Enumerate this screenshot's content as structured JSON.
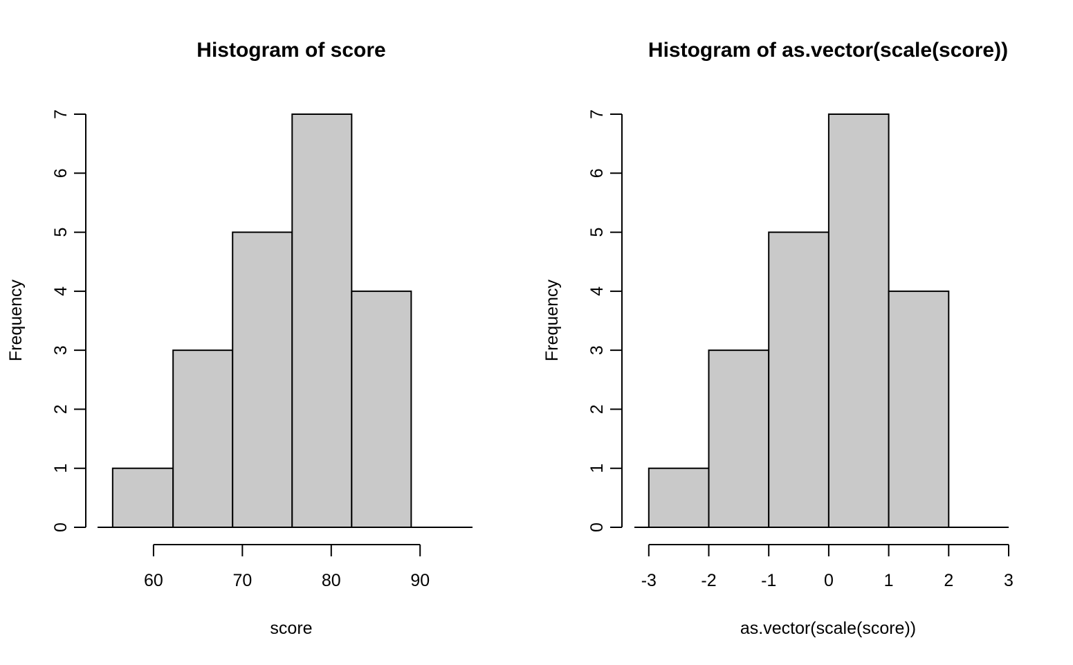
{
  "style": {
    "bar_fill": "#c9c9c9",
    "bar_stroke": "#000000",
    "background": "#ffffff"
  },
  "chart_data": [
    {
      "type": "bar",
      "title": "Histogram of score",
      "xlabel": "score",
      "ylabel": "Frequency",
      "bins": [
        {
          "x0": 55.4,
          "x1": 62.2,
          "count": 1
        },
        {
          "x0": 62.2,
          "x1": 68.9,
          "count": 3
        },
        {
          "x0": 68.9,
          "x1": 75.6,
          "count": 5
        },
        {
          "x0": 75.6,
          "x1": 82.3,
          "count": 7
        },
        {
          "x0": 82.3,
          "x1": 89.0,
          "count": 4
        }
      ],
      "xlim": [
        53.7,
        95.9
      ],
      "ylim": [
        0,
        7
      ],
      "xticks": [
        60,
        70,
        80,
        90
      ],
      "xtick_labels": [
        "60",
        "70",
        "80",
        "90"
      ],
      "yticks": [
        0,
        1,
        2,
        3,
        4,
        5,
        6,
        7
      ],
      "ytick_labels": [
        "0",
        "1",
        "2",
        "3",
        "4",
        "5",
        "6",
        "7"
      ],
      "grid": false
    },
    {
      "type": "bar",
      "title": "Histogram of as.vector(scale(score))",
      "xlabel": "as.vector(scale(score))",
      "ylabel": "Frequency",
      "bins": [
        {
          "x0": -3,
          "x1": -2,
          "count": 1
        },
        {
          "x0": -2,
          "x1": -1,
          "count": 3
        },
        {
          "x0": -1,
          "x1": 0,
          "count": 5
        },
        {
          "x0": 0,
          "x1": 1,
          "count": 7
        },
        {
          "x0": 1,
          "x1": 2,
          "count": 4
        }
      ],
      "xlim": [
        -3.24,
        3.0
      ],
      "ylim": [
        0,
        7
      ],
      "xticks": [
        -3,
        -2,
        -1,
        0,
        1,
        2,
        3
      ],
      "xtick_labels": [
        "-3",
        "-2",
        "-1",
        "0",
        "1",
        "2",
        "3"
      ],
      "yticks": [
        0,
        1,
        2,
        3,
        4,
        5,
        6,
        7
      ],
      "ytick_labels": [
        "0",
        "1",
        "2",
        "3",
        "4",
        "5",
        "6",
        "7"
      ],
      "grid": false
    }
  ]
}
